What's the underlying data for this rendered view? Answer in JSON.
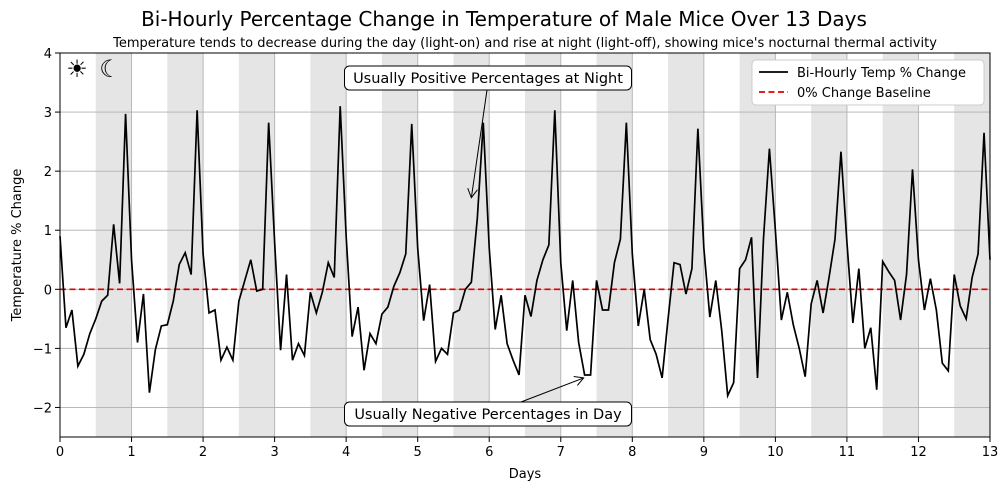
{
  "title": "Bi-Hourly Percentage Change in Temperature of Male Mice Over 13 Days",
  "subtitle": "Temperature tends to decrease during the day (light-on) and rise at night (light-off), showing mice's nocturnal thermal activity",
  "icons": {
    "sun": "☀",
    "moon": "☾",
    "sun_name": "sun-icon",
    "moon_name": "moon-icon"
  },
  "colors": {
    "line": "#000000",
    "baseline": "#e00000",
    "night_shade": "#e5e5e5",
    "grid": "#b0b0b0"
  },
  "annotations": [
    {
      "text": "Usually Positive Percentages at Night",
      "arrow_to": [
        5.75,
        1.55
      ]
    },
    {
      "text": "Usually Negative Percentages in Day",
      "arrow_to": [
        7.32,
        -1.5
      ]
    }
  ],
  "chart_data": {
    "type": "line",
    "xlabel": "Days",
    "ylabel": "Temperature % Change",
    "xlim": [
      0,
      13
    ],
    "ylim": [
      -2.5,
      4
    ],
    "xticks": [
      "0",
      "1",
      "2",
      "3",
      "4",
      "5",
      "6",
      "7",
      "8",
      "9",
      "10",
      "11",
      "12",
      "13"
    ],
    "yticks": [
      "−2",
      "−1",
      "0",
      "1",
      "2",
      "3",
      "4"
    ],
    "grid": "horizontal",
    "legend": "top-right",
    "night_periods_shaded": true,
    "series": [
      {
        "name": "Bi-Hourly Temp % Change",
        "points_per_day": 12,
        "values": [
          0.9,
          -0.65,
          -0.35,
          -1.3,
          -1.1,
          -0.75,
          -0.5,
          -0.2,
          -0.1,
          1.1,
          0.1,
          2.97,
          0.5,
          -0.9,
          -0.08,
          -1.75,
          -1.02,
          -0.62,
          -0.6,
          -0.2,
          0.42,
          0.62,
          0.25,
          3.03,
          0.6,
          -0.4,
          -0.35,
          -1.2,
          -0.98,
          -1.2,
          -0.2,
          0.15,
          0.5,
          -0.03,
          0.0,
          2.82,
          0.8,
          -1.03,
          0.25,
          -1.2,
          -0.92,
          -1.12,
          -0.05,
          -0.4,
          -0.05,
          0.45,
          0.2,
          3.1,
          0.9,
          -0.8,
          -0.3,
          -1.37,
          -0.75,
          -0.92,
          -0.42,
          -0.3,
          0.05,
          0.28,
          0.6,
          2.8,
          0.7,
          -0.53,
          0.08,
          -1.22,
          -1.0,
          -1.1,
          -0.4,
          -0.35,
          0.0,
          0.12,
          1.2,
          2.82,
          0.7,
          -0.68,
          -0.1,
          -0.92,
          -1.2,
          -1.45,
          -0.1,
          -0.46,
          0.15,
          0.5,
          0.75,
          3.03,
          0.45,
          -0.7,
          0.15,
          -0.9,
          -1.45,
          -1.45,
          0.15,
          -0.35,
          -0.35,
          0.45,
          0.85,
          2.82,
          0.6,
          -0.62,
          0.0,
          -0.85,
          -1.1,
          -1.5,
          -0.5,
          0.45,
          0.42,
          -0.08,
          0.35,
          2.72,
          0.7,
          -0.47,
          0.15,
          -0.7,
          -1.8,
          -1.58,
          0.35,
          0.5,
          0.88,
          -1.5,
          0.85,
          2.38,
          1.0,
          -0.52,
          -0.05,
          -0.6,
          -1.0,
          -1.48,
          -0.25,
          0.15,
          -0.4,
          0.2,
          0.85,
          2.33,
          0.8,
          -0.57,
          0.35,
          -1.0,
          -0.65,
          -1.7,
          0.47,
          0.3,
          0.15,
          -0.52,
          0.25,
          2.03,
          0.5,
          -0.35,
          0.18,
          -0.35,
          -1.25,
          -1.38,
          0.25,
          -0.28,
          -0.5,
          0.2,
          0.6,
          2.65,
          0.5
        ]
      },
      {
        "name": "0% Change Baseline",
        "values": [
          0,
          0
        ]
      }
    ]
  }
}
